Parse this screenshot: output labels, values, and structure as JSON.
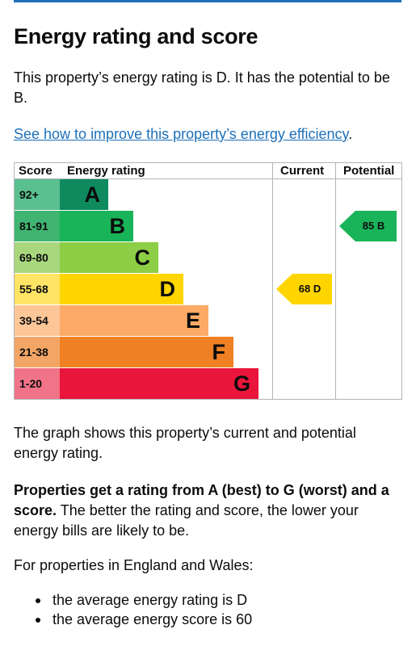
{
  "page": {
    "title": "Energy rating and score",
    "intro": "This property’s energy rating is D. It has the potential to be B.",
    "improve_link": "See how to improve this property’s energy efficiency",
    "improve_suffix": "."
  },
  "graph": {
    "headers": {
      "score": "Score",
      "rating": "Energy rating",
      "current": "Current",
      "potential": "Potential"
    },
    "bands": [
      {
        "letter": "A",
        "range": "92+",
        "color": "#0f8a5f",
        "score_color": "#5bc08f",
        "text_color": "#0b0c0c"
      },
      {
        "letter": "B",
        "range": "81-91",
        "color": "#19b459",
        "score_color": "#3fb571",
        "text_color": "#0b0c0c"
      },
      {
        "letter": "C",
        "range": "69-80",
        "color": "#8dce46",
        "score_color": "#a9d77e",
        "text_color": "#0b0c0c"
      },
      {
        "letter": "D",
        "range": "55-68",
        "color": "#ffd500",
        "score_color": "#ffe466",
        "text_color": "#0b0c0c"
      },
      {
        "letter": "E",
        "range": "39-54",
        "color": "#fcaa65",
        "score_color": "#fdc697",
        "text_color": "#0b0c0c"
      },
      {
        "letter": "F",
        "range": "21-38",
        "color": "#ef8023",
        "score_color": "#f3a565",
        "text_color": "#0b0c0c"
      },
      {
        "letter": "G",
        "range": "1-20",
        "color": "#e9153b",
        "score_color": "#f17388",
        "text_color": "#0b0c0c"
      }
    ],
    "current": {
      "score": 68,
      "letter": "D",
      "label": "68  D",
      "color": "#ffd500",
      "text_color": "#0b0c0c"
    },
    "potential": {
      "score": 85,
      "letter": "B",
      "label": "85  B",
      "color": "#19b459",
      "text_color": "#0b0c0c"
    }
  },
  "body": {
    "graph_desc": "The graph shows this property’s current and potential energy rating.",
    "rating_strong": "Properties get a rating from A (best) to G (worst) and a score.",
    "rating_rest": " The better the rating and score, the lower your energy bills are likely to be.",
    "regions": "For properties in England and Wales:",
    "averages": [
      "the average energy rating is D",
      "the average energy score is 60"
    ]
  }
}
